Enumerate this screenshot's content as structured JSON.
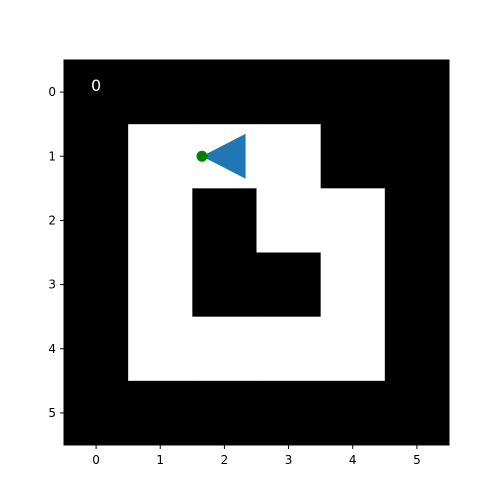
{
  "grid": {
    "rows": 6,
    "cols": 6,
    "cells": [
      [
        1,
        1,
        1,
        1,
        1,
        1
      ],
      [
        1,
        0,
        0,
        0,
        1,
        1
      ],
      [
        1,
        0,
        1,
        0,
        0,
        1
      ],
      [
        1,
        0,
        1,
        1,
        0,
        1
      ],
      [
        1,
        0,
        0,
        0,
        0,
        1
      ],
      [
        1,
        1,
        1,
        1,
        1,
        1
      ]
    ],
    "wall_color": "#000000",
    "floor_color": "#ffffff"
  },
  "axes": {
    "x_ticks": [
      "0",
      "1",
      "2",
      "3",
      "4",
      "5"
    ],
    "y_ticks": [
      "0",
      "1",
      "2",
      "3",
      "4",
      "5"
    ],
    "x_range": [
      -0.5,
      5.5
    ],
    "y_range": [
      -0.5,
      5.5
    ]
  },
  "step_counter": {
    "text": "0",
    "color": "#ffffff"
  },
  "agent": {
    "col": 1.65,
    "row": 1.0,
    "direction": "left",
    "triangle_color": "#1f77b4",
    "dot_color": "#008000"
  }
}
